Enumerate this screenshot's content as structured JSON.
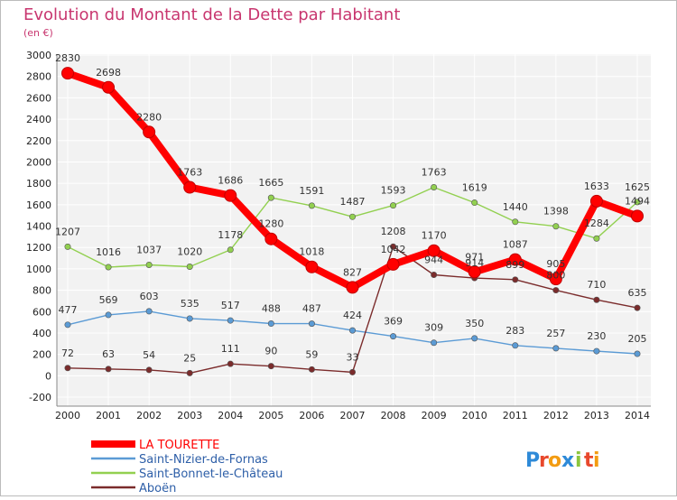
{
  "chart_data": {
    "type": "line",
    "title": "Evolution du Montant de la Dette par Habitant",
    "subtitle": "(en €)",
    "x": [
      "2000",
      "2001",
      "2002",
      "2003",
      "2004",
      "2005",
      "2006",
      "2007",
      "2008",
      "2009",
      "2010",
      "2011",
      "2012",
      "2013",
      "2014"
    ],
    "yticks": [
      -200,
      0,
      200,
      400,
      600,
      800,
      1000,
      1200,
      1400,
      1600,
      1800,
      2000,
      2200,
      2400,
      2600,
      2800,
      3000
    ],
    "ylim": [
      -200,
      3000
    ],
    "grid": true,
    "legend_position": "bottom-left",
    "series": [
      {
        "name": "LA TOURETTE",
        "color": "#ff0000",
        "values": [
          2830,
          2698,
          2280,
          1763,
          1686,
          1280,
          1018,
          827,
          1042,
          1170,
          971,
          1087,
          905,
          1633,
          1494
        ]
      },
      {
        "name": "Saint-Nizier-de-Fornas",
        "color": "#5b9bd5",
        "values": [
          477,
          569,
          603,
          535,
          517,
          488,
          487,
          424,
          369,
          309,
          350,
          283,
          257,
          230,
          205
        ]
      },
      {
        "name": "Saint-Bonnet-le-Château",
        "color": "#92d050",
        "values": [
          1207,
          1016,
          1037,
          1020,
          1178,
          1665,
          1591,
          1487,
          1593,
          1763,
          1619,
          1440,
          1398,
          1284,
          1625
        ]
      },
      {
        "name": "Aboën",
        "color": "#7b2c2c",
        "values": [
          72,
          63,
          54,
          25,
          111,
          90,
          59,
          33,
          1208,
          944,
          914,
          899,
          800,
          710,
          635
        ]
      }
    ]
  },
  "logo": {
    "text": "Proxiti",
    "letters": [
      "P",
      "r",
      "o",
      "x",
      "i",
      "t",
      "i"
    ],
    "colors": [
      "#2e8ad8",
      "#e8482c",
      "#f39c12",
      "#2e8ad8",
      "#8cc63f",
      "#e8482c",
      "#f39c12"
    ]
  }
}
